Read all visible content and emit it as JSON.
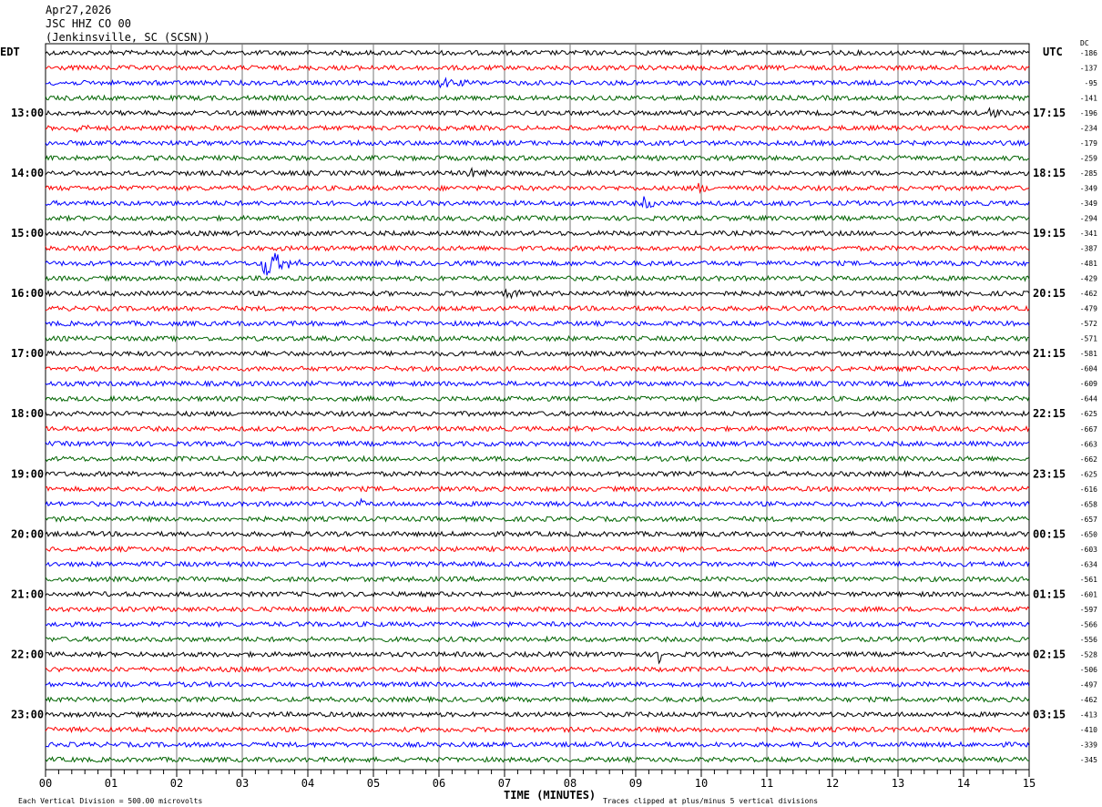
{
  "header": {
    "date": "Apr27,2026",
    "station": "JSC HHZ CO 00",
    "location": "(Jenkinsville, SC (SCSN))"
  },
  "chart_data": {
    "type": "line",
    "subtype": "helicorder",
    "left_axis_title": "EDT",
    "right_axis_title": "UTC",
    "dc_title": "DC",
    "xlabel": "TIME (MINUTES)",
    "xlim": [
      0,
      15
    ],
    "x_ticks": [
      "00",
      "01",
      "02",
      "03",
      "04",
      "05",
      "06",
      "07",
      "08",
      "09",
      "10",
      "11",
      "12",
      "13",
      "14",
      "15"
    ],
    "minutes_per_line": 15,
    "trace_colors": [
      "#000000",
      "#ff0000",
      "#0000ff",
      "#006400"
    ],
    "left_labels": [
      "",
      "",
      "",
      "",
      "13:00",
      "",
      "",
      "",
      "14:00",
      "",
      "",
      "",
      "15:00",
      "",
      "",
      "",
      "16:00",
      "",
      "",
      "",
      "17:00",
      "",
      "",
      "",
      "18:00",
      "",
      "",
      "",
      "19:00",
      "",
      "",
      "",
      "20:00",
      "",
      "",
      "",
      "21:00",
      "",
      "",
      "",
      "22:00",
      "",
      "",
      "",
      "23:00",
      "",
      "",
      ""
    ],
    "right_labels": [
      "",
      "",
      "",
      "",
      "17:15",
      "",
      "",
      "",
      "18:15",
      "",
      "",
      "",
      "19:15",
      "",
      "",
      "",
      "20:15",
      "",
      "",
      "",
      "21:15",
      "",
      "",
      "",
      "22:15",
      "",
      "",
      "",
      "23:15",
      "",
      "",
      "",
      "00:15",
      "",
      "",
      "",
      "01:15",
      "",
      "",
      "",
      "02:15",
      "",
      "",
      "",
      "03:15",
      "",
      "",
      ""
    ],
    "dc_offsets": [
      "-186",
      "-137",
      "-95",
      "-141",
      "-196",
      "-234",
      "-179",
      "-259",
      "-285",
      "-349",
      "-349",
      "-294",
      "-341",
      "-387",
      "-481",
      "-429",
      "-462",
      "-479",
      "-572",
      "-571",
      "-581",
      "-604",
      "-609",
      "-644",
      "-625",
      "-667",
      "-663",
      "-662",
      "-625",
      "-616",
      "-658",
      "-657",
      "-650",
      "-603",
      "-634",
      "-561",
      "-601",
      "-597",
      "-566",
      "-556",
      "-528",
      "-506",
      "-497",
      "-462",
      "-413",
      "-410",
      "-339",
      "-345"
    ],
    "events": [
      {
        "line": 2,
        "minute": 6.0,
        "duration": 0.6,
        "amplitude": 0.6
      },
      {
        "line": 4,
        "minute": 14.35,
        "duration": 0.3,
        "amplitude": 1.2
      },
      {
        "line": 5,
        "minute": 0.4,
        "duration": 0.3,
        "amplitude": 0.7
      },
      {
        "line": 8,
        "minute": 6.4,
        "duration": 0.5,
        "amplitude": 0.6
      },
      {
        "line": 9,
        "minute": 9.95,
        "duration": 0.2,
        "amplitude": 0.7
      },
      {
        "line": 10,
        "minute": 9.1,
        "duration": 0.3,
        "amplitude": 1.0
      },
      {
        "line": 10,
        "minute": 11.2,
        "duration": 0.2,
        "amplitude": 0.6
      },
      {
        "line": 14,
        "minute": 3.3,
        "duration": 0.6,
        "amplitude": 3.0
      },
      {
        "line": 16,
        "minute": 7.0,
        "duration": 0.4,
        "amplitude": 0.7
      },
      {
        "line": 23,
        "minute": 8.0,
        "duration": 0.1,
        "amplitude": 0.8
      },
      {
        "line": 30,
        "minute": 4.8,
        "duration": 0.1,
        "amplitude": 0.8
      },
      {
        "line": 40,
        "minute": 9.35,
        "duration": 0.1,
        "amplitude": 1.5
      }
    ],
    "footer_left": "Each Vertical Division =  500.00 microvolts",
    "footer_right": "Traces clipped at plus/minus 5 vertical divisions"
  }
}
